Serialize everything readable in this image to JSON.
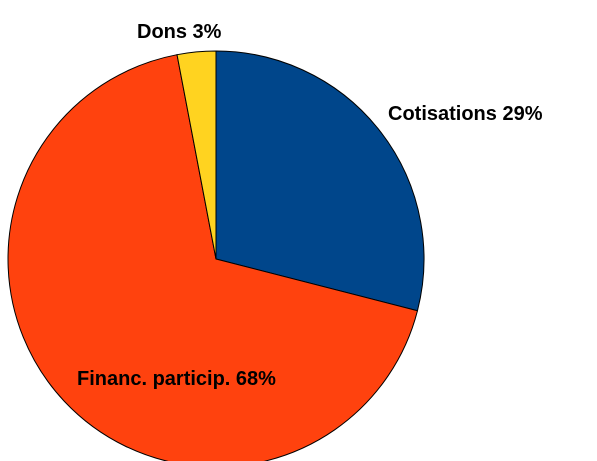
{
  "chart_data": {
    "type": "pie",
    "title": "",
    "categories": [
      "Cotisations",
      "Financ. particip.",
      "Dons"
    ],
    "values": [
      29,
      68,
      3
    ],
    "colors": [
      "#00468B",
      "#FF420E",
      "#FFD320"
    ],
    "data_labels": [
      "Cotisations 29%",
      "Financ. particip. 68%",
      "Dons 3%"
    ],
    "start_angle_deg": 0,
    "direction": "clockwise",
    "legend": "none",
    "grid": false
  }
}
